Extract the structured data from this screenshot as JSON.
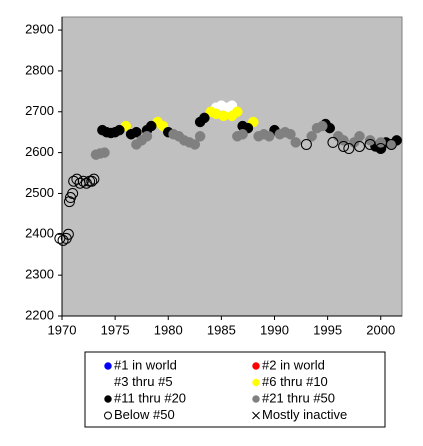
{
  "chart_data": {
    "type": "scatter",
    "xlim": [
      1970,
      2002
    ],
    "ylim": [
      2200,
      2932
    ],
    "xticks": [
      1970,
      1975,
      1980,
      1985,
      1990,
      1995,
      2000
    ],
    "yticks": [
      2200,
      2300,
      2400,
      2500,
      2600,
      2700,
      2800,
      2900
    ],
    "grid": false,
    "legend": "bottom",
    "series": [
      {
        "name": "#1 in world",
        "color": "#0000ff",
        "marker": "filled",
        "x": [],
        "y": []
      },
      {
        "name": "#2 in world",
        "color": "#ff0000",
        "marker": "filled",
        "x": [],
        "y": []
      },
      {
        "name": "#3 thru #5",
        "color": "#ffffff",
        "marker": "filled",
        "x": [
          1984.5,
          1985,
          1985.6,
          1986
        ],
        "y": [
          2710,
          2715,
          2710,
          2715
        ]
      },
      {
        "name": "#6 thru #10",
        "color": "#ffff00",
        "marker": "filled",
        "x": [
          1976,
          1979,
          1979.5,
          1984,
          1984.5,
          1985.2,
          1986,
          1986.5,
          1988
        ],
        "y": [
          2665,
          2675,
          2665,
          2700,
          2695,
          2690,
          2690,
          2700,
          2675
        ]
      },
      {
        "name": "#11 thru #20",
        "color": "#000000",
        "marker": "filled",
        "x": [
          1973.8,
          1974.2,
          1974.6,
          1975,
          1975.4,
          1976.5,
          1977,
          1978,
          1978.4,
          1980,
          1983,
          1983.4,
          1987,
          1987.5,
          1990,
          1994.8,
          1995.2,
          1999.5,
          2000,
          2000.5,
          2001,
          2001.5
        ],
        "y": [
          2655,
          2650,
          2648,
          2650,
          2655,
          2645,
          2650,
          2655,
          2665,
          2650,
          2675,
          2685,
          2665,
          2660,
          2655,
          2670,
          2660,
          2615,
          2610,
          2625,
          2620,
          2630
        ]
      },
      {
        "name": "#21 thru #50",
        "color": "#808080",
        "marker": "filled",
        "x": [
          1973.2,
          1973.6,
          1974,
          1977,
          1977.5,
          1978,
          1980.5,
          1981,
          1981.5,
          1982,
          1982.5,
          1983,
          1986.5,
          1987,
          1988.5,
          1989,
          1989.5,
          1990.5,
          1991,
          1991.5,
          1992,
          1993.5,
          1994,
          1994.5,
          1996,
          1996.5,
          1997.5,
          1998,
          1999,
          2000,
          2001
        ],
        "y": [
          2595,
          2598,
          2600,
          2620,
          2630,
          2640,
          2645,
          2640,
          2630,
          2625,
          2620,
          2640,
          2640,
          2645,
          2640,
          2645,
          2640,
          2645,
          2650,
          2645,
          2625,
          2640,
          2660,
          2665,
          2640,
          2630,
          2625,
          2640,
          2630,
          2625,
          2620
        ]
      },
      {
        "name": "Below #50",
        "color": "#000000",
        "marker": "open",
        "x": [
          1969.8,
          1970.1,
          1970.4,
          1970.6,
          1970.7,
          1970.8,
          1971,
          1971.1,
          1971.4,
          1971.7,
          1972,
          1972.3,
          1972.6,
          1972.8,
          1973,
          1993,
          1995.5,
          1996.5,
          1997,
          1998,
          1999,
          2000,
          2001
        ],
        "y": [
          2390,
          2385,
          2390,
          2400,
          2480,
          2490,
          2500,
          2530,
          2535,
          2525,
          2530,
          2525,
          2530,
          2530,
          2535,
          2620,
          2625,
          2615,
          2610,
          2615,
          2620,
          2610,
          2620
        ]
      },
      {
        "name": "Mostly inactive",
        "color": "#000000",
        "marker": "x",
        "x": [],
        "y": []
      }
    ]
  }
}
